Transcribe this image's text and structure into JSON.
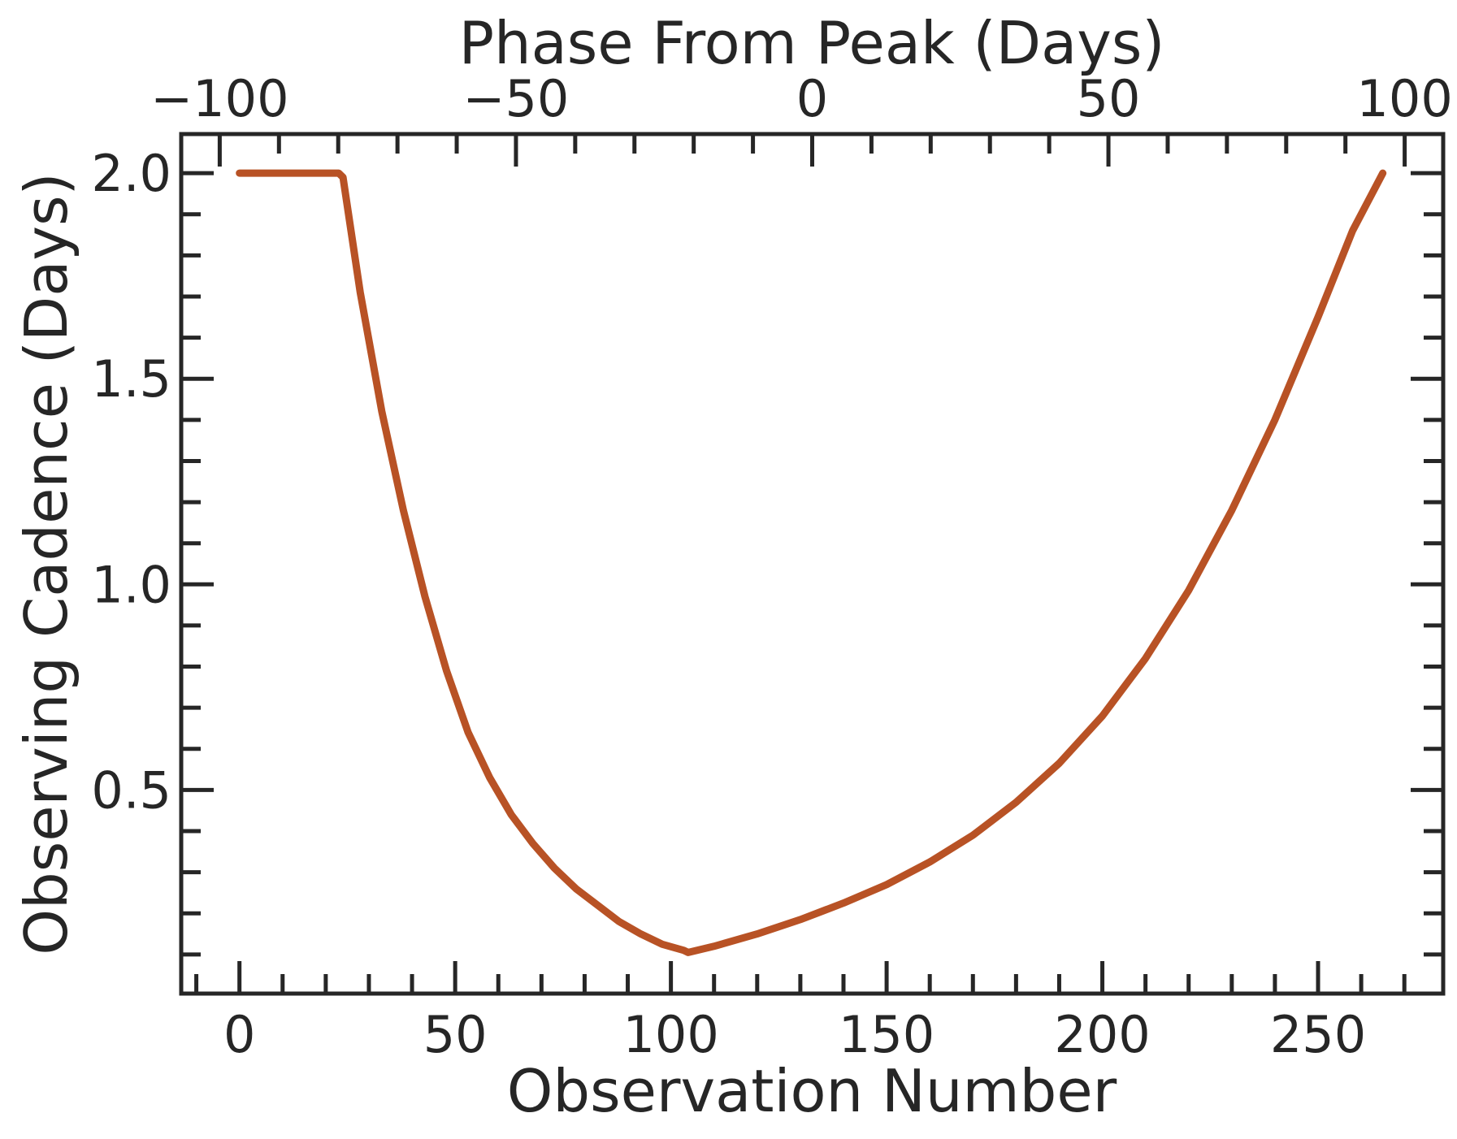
{
  "chart_data": {
    "type": "line",
    "xlabel": "Observation Number",
    "ylabel": "Observing Cadence (Days)",
    "top_xlabel": "Phase From Peak (Days)",
    "xlim": [
      -13.5,
      279
    ],
    "ylim": [
      0.005,
      2.095
    ],
    "top_xlim": [
      -106.5,
      106.5
    ],
    "x_ticks": [
      0,
      50,
      100,
      150,
      200,
      250
    ],
    "x_tick_labels": [
      "0",
      "50",
      "100",
      "150",
      "200",
      "250"
    ],
    "x_minor_ticks": [
      -10,
      10,
      20,
      30,
      40,
      60,
      70,
      80,
      90,
      110,
      120,
      130,
      140,
      160,
      170,
      180,
      190,
      210,
      220,
      230,
      240,
      260,
      270
    ],
    "y_ticks": [
      0.5,
      1.0,
      1.5,
      2.0
    ],
    "y_tick_labels": [
      "0.5",
      "1.0",
      "1.5",
      "2.0"
    ],
    "y_minor_ticks": [
      0.1,
      0.2,
      0.3,
      0.4,
      0.6,
      0.7,
      0.8,
      0.9,
      1.1,
      1.2,
      1.3,
      1.4,
      1.6,
      1.7,
      1.8,
      1.9
    ],
    "top_ticks": [
      -100,
      -50,
      0,
      50,
      100
    ],
    "top_tick_labels": [
      "−100",
      "−50",
      "0",
      "50",
      "100"
    ],
    "top_minor_ticks": [
      -90,
      -80,
      -70,
      -60,
      -40,
      -30,
      -20,
      -10,
      10,
      20,
      30,
      40,
      60,
      70,
      80,
      90
    ],
    "grid": false,
    "line_color": "#b85225",
    "series": [
      {
        "x": [
          0,
          10,
          23,
          24,
          28,
          33,
          38,
          43,
          48,
          53,
          58,
          63,
          68,
          73,
          78,
          83,
          88,
          93,
          98,
          103,
          104,
          110,
          120,
          130,
          140,
          150,
          160,
          170,
          180,
          190,
          200,
          210,
          220,
          230,
          240,
          250,
          258,
          265
        ],
        "y": [
          2.0,
          2.0,
          2.0,
          1.99,
          1.71,
          1.42,
          1.18,
          0.97,
          0.79,
          0.64,
          0.53,
          0.44,
          0.37,
          0.31,
          0.26,
          0.22,
          0.18,
          0.15,
          0.125,
          0.11,
          0.105,
          0.12,
          0.15,
          0.185,
          0.225,
          0.27,
          0.325,
          0.39,
          0.47,
          0.565,
          0.68,
          0.82,
          0.985,
          1.18,
          1.4,
          1.65,
          1.86,
          2.0
        ]
      }
    ]
  }
}
